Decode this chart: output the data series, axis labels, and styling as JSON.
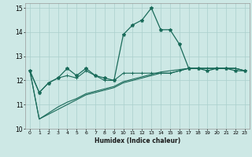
{
  "xlabel": "Humidex (Indice chaleur)",
  "background_color": "#cde8e5",
  "grid_color": "#aacfcc",
  "line_color": "#1a6b5a",
  "x_values": [
    0,
    1,
    2,
    3,
    4,
    5,
    6,
    7,
    8,
    9,
    10,
    11,
    12,
    13,
    14,
    15,
    16,
    17,
    18,
    19,
    20,
    21,
    22,
    23
  ],
  "series1": [
    12.4,
    11.5,
    11.9,
    12.1,
    12.5,
    12.2,
    12.5,
    12.2,
    12.1,
    12.0,
    13.9,
    14.3,
    14.5,
    15.0,
    14.1,
    14.1,
    13.5,
    12.5,
    12.5,
    12.4,
    12.5,
    12.5,
    12.4,
    12.4
  ],
  "series2": [
    12.4,
    11.5,
    11.9,
    12.1,
    12.2,
    12.1,
    12.4,
    12.2,
    12.0,
    12.0,
    12.3,
    12.3,
    12.3,
    12.3,
    12.3,
    12.3,
    12.4,
    12.5,
    12.5,
    12.5,
    12.5,
    12.5,
    12.5,
    12.4
  ],
  "series3": [
    12.4,
    10.4,
    10.6,
    10.8,
    11.0,
    11.2,
    11.4,
    11.5,
    11.6,
    11.7,
    11.9,
    12.0,
    12.1,
    12.2,
    12.3,
    12.3,
    12.4,
    12.5,
    12.5,
    12.5,
    12.5,
    12.5,
    12.5,
    12.4
  ],
  "series4": [
    12.4,
    10.4,
    10.65,
    10.9,
    11.1,
    11.25,
    11.45,
    11.55,
    11.65,
    11.75,
    11.95,
    12.05,
    12.15,
    12.25,
    12.35,
    12.4,
    12.45,
    12.5,
    12.5,
    12.5,
    12.5,
    12.5,
    12.5,
    12.4
  ],
  "ylim": [
    10,
    15.2
  ],
  "yticks": [
    10,
    11,
    12,
    13,
    14,
    15
  ],
  "xlim": [
    -0.5,
    23.5
  ]
}
